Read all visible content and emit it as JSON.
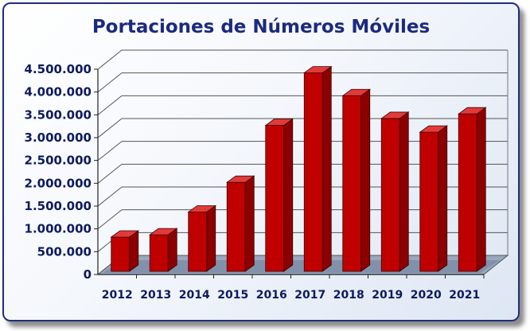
{
  "chart_data": {
    "type": "bar",
    "title": "Portaciones de Números Móviles",
    "xlabel": "",
    "ylabel": "",
    "categories": [
      "2012",
      "2013",
      "2014",
      "2015",
      "2016",
      "2017",
      "2018",
      "2019",
      "2020",
      "2021"
    ],
    "values": [
      750000,
      800000,
      1300000,
      1950000,
      3200000,
      4350000,
      3850000,
      3350000,
      3050000,
      3450000
    ],
    "ylim": [
      0,
      4500000
    ],
    "yticks": [
      "0",
      "500.000",
      "1.000.000",
      "1.500.000",
      "2.000.000",
      "2.500.000",
      "3.000.000",
      "3.500.000",
      "4.000.000",
      "4.500.000"
    ],
    "grid": true,
    "legend": "none",
    "bar_color": "#c00000",
    "title_color": "#1b2a7d"
  }
}
